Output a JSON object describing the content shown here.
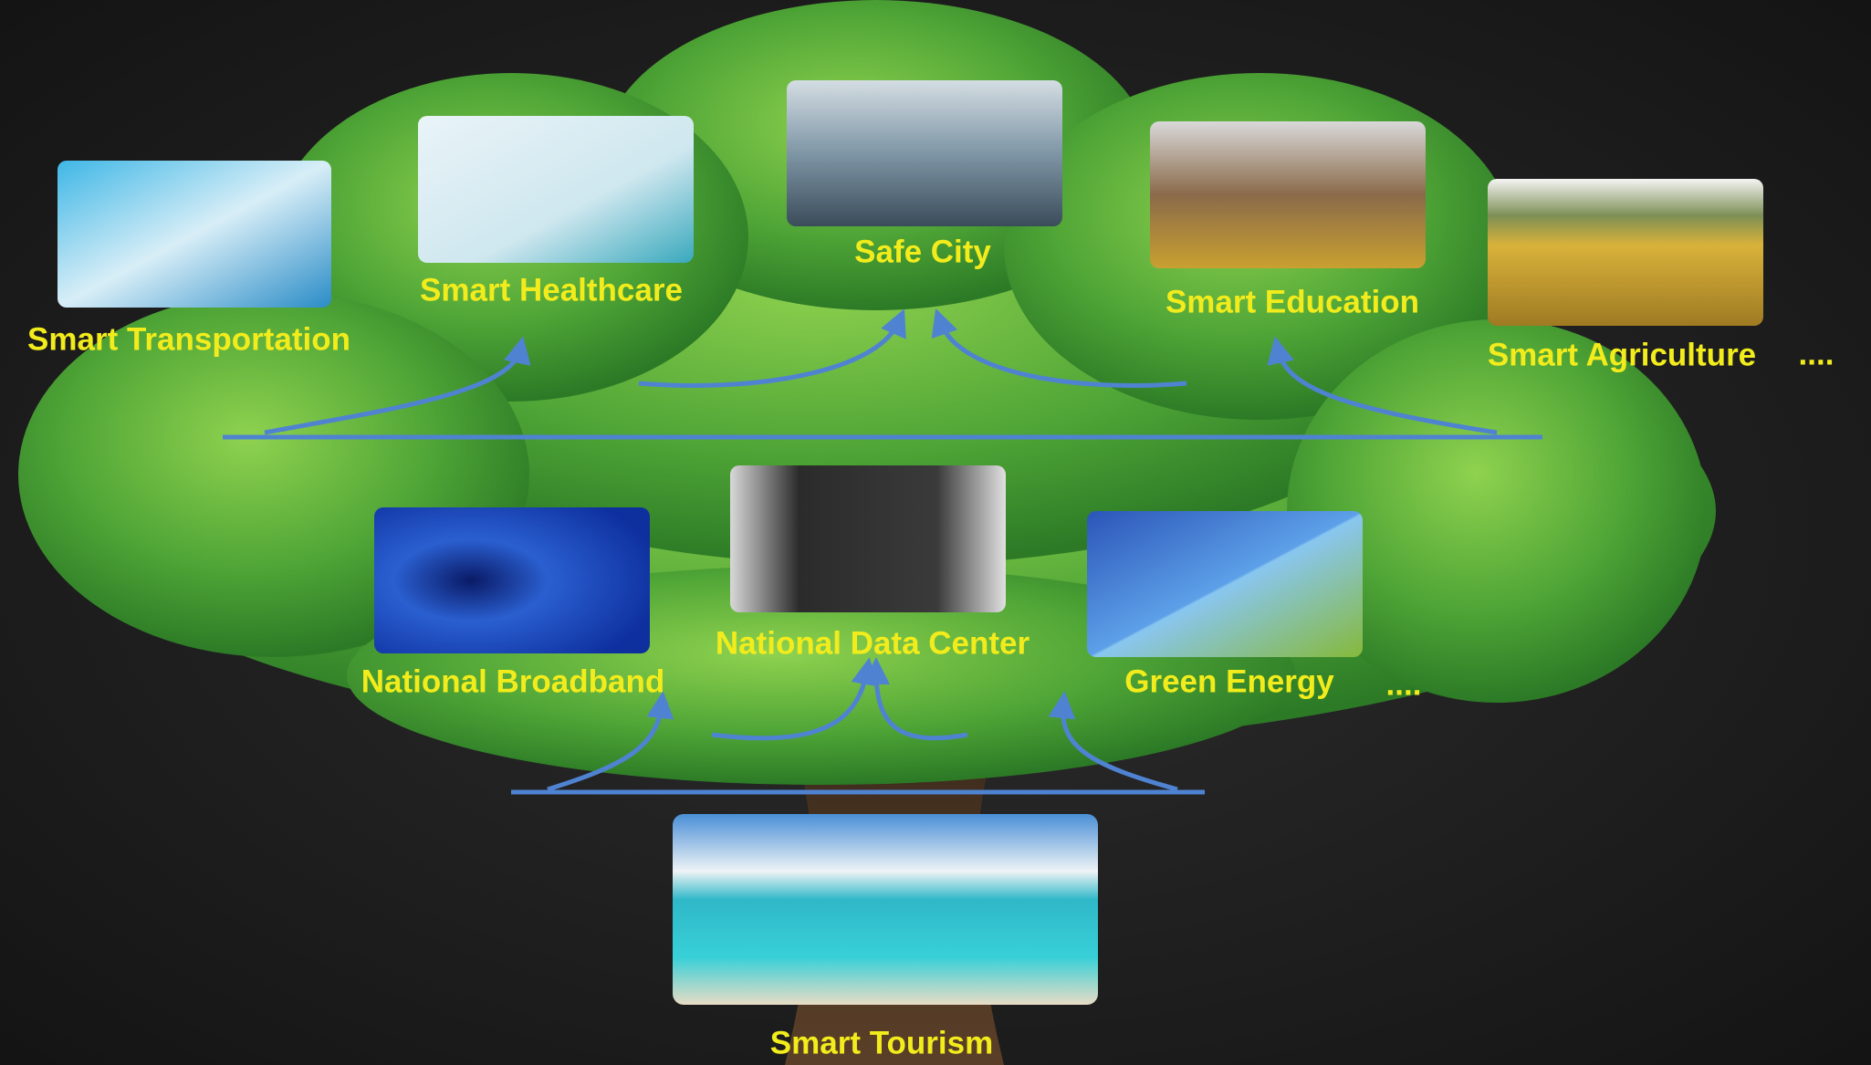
{
  "top_row": [
    {
      "label": "Smart Transportation"
    },
    {
      "label": "Smart Healthcare"
    },
    {
      "label": "Safe City"
    },
    {
      "label": "Smart Education"
    },
    {
      "label": "Smart Agriculture"
    }
  ],
  "top_more": "....",
  "middle_row": [
    {
      "label": "National Broadband"
    },
    {
      "label": "National Data Center"
    },
    {
      "label": "Green Energy"
    }
  ],
  "middle_more": "....",
  "bottom": {
    "label": "Smart Tourism"
  }
}
